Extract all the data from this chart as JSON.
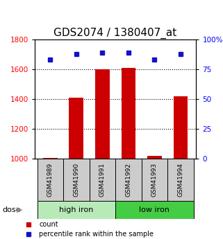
{
  "title": "GDS2074 / 1380407_at",
  "samples": [
    "GSM41989",
    "GSM41990",
    "GSM41991",
    "GSM41992",
    "GSM41993",
    "GSM41994"
  ],
  "count_values": [
    1008,
    1408,
    1600,
    1610,
    1020,
    1420
  ],
  "percentile_values": [
    83,
    88,
    89,
    89,
    83,
    88
  ],
  "ylim_left": [
    1000,
    1800
  ],
  "ylim_right": [
    0,
    100
  ],
  "yticks_left": [
    1000,
    1200,
    1400,
    1600,
    1800
  ],
  "yticks_right": [
    0,
    25,
    50,
    75,
    100
  ],
  "ytick_labels_right": [
    "0",
    "25",
    "50",
    "75",
    "100%"
  ],
  "bar_color": "#cc0000",
  "dot_color": "#1111cc",
  "group1_label": "high iron",
  "group2_label": "low iron",
  "group1_color": "#b8eab8",
  "group2_color": "#44cc44",
  "group1_indices": [
    0,
    1,
    2
  ],
  "group2_indices": [
    3,
    4,
    5
  ],
  "dose_label": "dose",
  "legend_count": "count",
  "legend_percentile": "percentile rank within the sample",
  "bar_bottom": 1000,
  "grid_lines": [
    1200,
    1400,
    1600
  ],
  "fig_width": 3.21,
  "fig_height": 3.45,
  "dpi": 100,
  "title_fontsize": 11,
  "tick_label_fontsize": 7.5,
  "sample_fontsize": 6.5,
  "group_fontsize": 8,
  "legend_fontsize": 7,
  "dose_fontsize": 8
}
